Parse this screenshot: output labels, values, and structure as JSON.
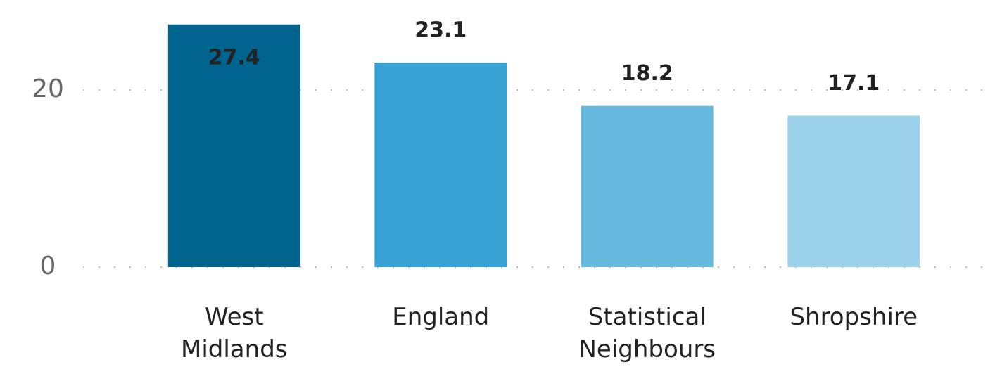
{
  "chart_data": {
    "type": "bar",
    "categories": [
      "West Midlands",
      "England",
      "Statistical Neighbours",
      "Shropshire"
    ],
    "values": [
      27.4,
      23.1,
      18.2,
      17.1
    ],
    "colors": [
      "#00648f",
      "#38a2d4",
      "#67b8de",
      "#9bd2ea"
    ],
    "ylim": [
      0,
      30
    ],
    "yticks": [
      0,
      20
    ],
    "grid": true
  }
}
